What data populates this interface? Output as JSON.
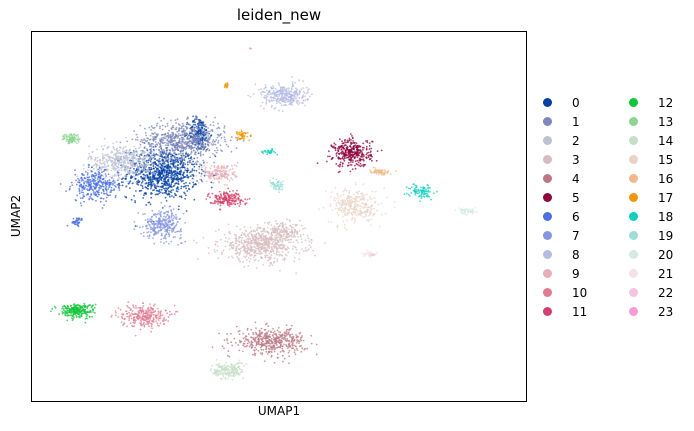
{
  "chart_data": {
    "type": "scatter",
    "title": "leiden_new",
    "xlabel": "UMAP1",
    "ylabel": "UMAP2",
    "grid": false,
    "legend_placement": "right",
    "series": [
      {
        "name": "0",
        "color": "#023fa5",
        "clusters": [
          [
            -9.8,
            3.4,
            2.0,
            1.8,
            900
          ],
          [
            -7.5,
            6.5,
            0.6,
            1.2,
            200
          ]
        ]
      },
      {
        "name": "1",
        "color": "#7d87b9",
        "clusters": [
          [
            -8.5,
            6.0,
            2.4,
            1.3,
            650
          ]
        ]
      },
      {
        "name": "2",
        "color": "#bec1d4",
        "clusters": [
          [
            -12.2,
            4.3,
            2.0,
            1.2,
            500
          ]
        ]
      },
      {
        "name": "3",
        "color": "#d6bcc0",
        "clusters": [
          [
            -3.6,
            -2.2,
            2.4,
            1.2,
            650
          ],
          [
            -2.2,
            -1.2,
            1.0,
            0.6,
            120
          ]
        ]
      },
      {
        "name": "4",
        "color": "#bb7784",
        "clusters": [
          [
            -3.0,
            -9.8,
            2.0,
            0.9,
            450
          ]
        ]
      },
      {
        "name": "5",
        "color": "#8e063b",
        "clusters": [
          [
            2.1,
            5.0,
            1.1,
            1.0,
            350
          ]
        ]
      },
      {
        "name": "6",
        "color": "#4a6fe3",
        "clusters": [
          [
            -14.0,
            2.4,
            1.3,
            1.1,
            320
          ],
          [
            -15.2,
            -0.4,
            0.4,
            0.3,
            40
          ]
        ]
      },
      {
        "name": "7",
        "color": "#8595e1",
        "clusters": [
          [
            -9.8,
            -0.6,
            1.1,
            1.0,
            300
          ]
        ]
      },
      {
        "name": "8",
        "color": "#b5bbe3",
        "clusters": [
          [
            -2.2,
            9.5,
            1.3,
            0.8,
            320
          ]
        ]
      },
      {
        "name": "9",
        "color": "#e6afb9",
        "clusters": [
          [
            -6.2,
            3.4,
            1.0,
            0.7,
            180
          ]
        ]
      },
      {
        "name": "10",
        "color": "#e07b91",
        "clusters": [
          [
            -11.0,
            -7.8,
            1.3,
            0.8,
            280
          ]
        ]
      },
      {
        "name": "11",
        "color": "#d33f6a",
        "clusters": [
          [
            -5.8,
            1.4,
            1.0,
            0.5,
            180
          ]
        ]
      },
      {
        "name": "12",
        "color": "#11c638",
        "clusters": [
          [
            -15.2,
            -7.4,
            1.0,
            0.5,
            250
          ]
        ]
      },
      {
        "name": "13",
        "color": "#8dd593",
        "clusters": [
          [
            -15.5,
            6.1,
            0.5,
            0.35,
            90
          ]
        ]
      },
      {
        "name": "14",
        "color": "#c6dec7",
        "clusters": [
          [
            -5.7,
            -12.1,
            0.9,
            0.6,
            180
          ]
        ]
      },
      {
        "name": "15",
        "color": "#ead3c6",
        "clusters": [
          [
            2.3,
            0.8,
            1.4,
            1.2,
            300
          ]
        ]
      },
      {
        "name": "16",
        "color": "#f0b98d",
        "clusters": [
          [
            3.8,
            3.5,
            0.6,
            0.2,
            70
          ]
        ]
      },
      {
        "name": "17",
        "color": "#ef9708",
        "clusters": [
          [
            -4.8,
            6.4,
            0.3,
            0.35,
            50
          ],
          [
            -5.8,
            10.3,
            0.1,
            0.2,
            15
          ]
        ]
      },
      {
        "name": "18",
        "color": "#0fcfc0",
        "clusters": [
          [
            6.4,
            2.0,
            0.7,
            0.5,
            90
          ],
          [
            -3.2,
            5.1,
            0.4,
            0.15,
            30
          ]
        ]
      },
      {
        "name": "19",
        "color": "#9cded6",
        "clusters": [
          [
            -2.6,
            2.4,
            0.4,
            0.35,
            60
          ]
        ]
      },
      {
        "name": "20",
        "color": "#d5eae7",
        "clusters": [
          [
            9.3,
            0.4,
            0.6,
            0.2,
            50
          ]
        ]
      },
      {
        "name": "21",
        "color": "#f3e1eb",
        "clusters": [
          [
            3.2,
            -3.0,
            0.4,
            0.2,
            30
          ]
        ]
      },
      {
        "name": "22",
        "color": "#f6c4e1",
        "clusters": [
          [
            3.4,
            -3.0,
            0.15,
            0.1,
            8
          ]
        ]
      },
      {
        "name": "23",
        "color": "#f79cd4",
        "clusters": [
          [
            -4.3,
            13.2,
            0.05,
            0.05,
            4
          ]
        ]
      }
    ],
    "xlim": [
      -18,
      13
    ],
    "ylim": [
      -14.5,
      14.5
    ]
  }
}
